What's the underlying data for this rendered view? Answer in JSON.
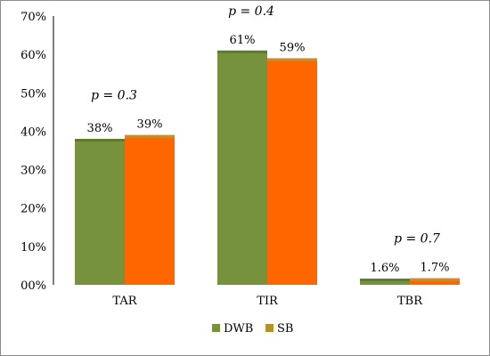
{
  "chart_data": {
    "type": "bar",
    "categories": [
      "TAR",
      "TIR",
      "TBR"
    ],
    "series": [
      {
        "name": "DWB",
        "values": [
          38,
          61,
          1.6
        ],
        "labels": [
          "38%",
          "61%",
          "1.6%"
        ],
        "color": "#76923c"
      },
      {
        "name": "SB",
        "values": [
          39,
          59,
          1.7
        ],
        "labels": [
          "39%",
          "59%",
          "1.7%"
        ],
        "color": "#ff6600",
        "legend_color": "#b8902a"
      }
    ],
    "annotations": [
      "p = 0.3",
      "p = 0.4",
      "p = 0.7"
    ],
    "y_ticks": [
      "00%",
      "10%",
      "20%",
      "30%",
      "40%",
      "50%",
      "60%",
      "70%"
    ],
    "ylim": [
      0,
      70
    ],
    "grid": false,
    "legend_position": "bottom"
  }
}
